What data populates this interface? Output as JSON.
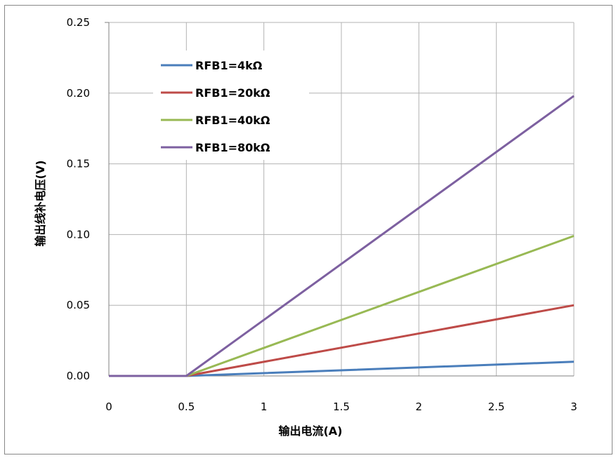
{
  "chart_data": {
    "type": "line",
    "title": "",
    "xlabel": "输出电流(A)",
    "ylabel": "输出线补电压(V)",
    "xlim": [
      0,
      3
    ],
    "ylim": [
      0,
      0.25
    ],
    "x_ticks": [
      "0",
      "0.5",
      "1",
      "1.5",
      "2",
      "2.5",
      "3"
    ],
    "y_ticks": [
      "0.00",
      "0.05",
      "0.10",
      "0.15",
      "0.20",
      "0.25"
    ],
    "grid": true,
    "legend_position": "top-left",
    "series": [
      {
        "name": "RFB1=4kΩ",
        "color": "#4a7ebb",
        "x": [
          0,
          0.5,
          3
        ],
        "y": [
          0,
          0,
          0.01
        ]
      },
      {
        "name": "RFB1=20kΩ",
        "color": "#be4b48",
        "x": [
          0,
          0.5,
          3
        ],
        "y": [
          0,
          0,
          0.05
        ]
      },
      {
        "name": "RFB1=40kΩ",
        "color": "#98b954",
        "x": [
          0,
          0.5,
          3
        ],
        "y": [
          0,
          0,
          0.099
        ]
      },
      {
        "name": "RFB1=80kΩ",
        "color": "#7d60a0",
        "x": [
          0,
          0.5,
          3
        ],
        "y": [
          0,
          0,
          0.198
        ]
      }
    ]
  }
}
